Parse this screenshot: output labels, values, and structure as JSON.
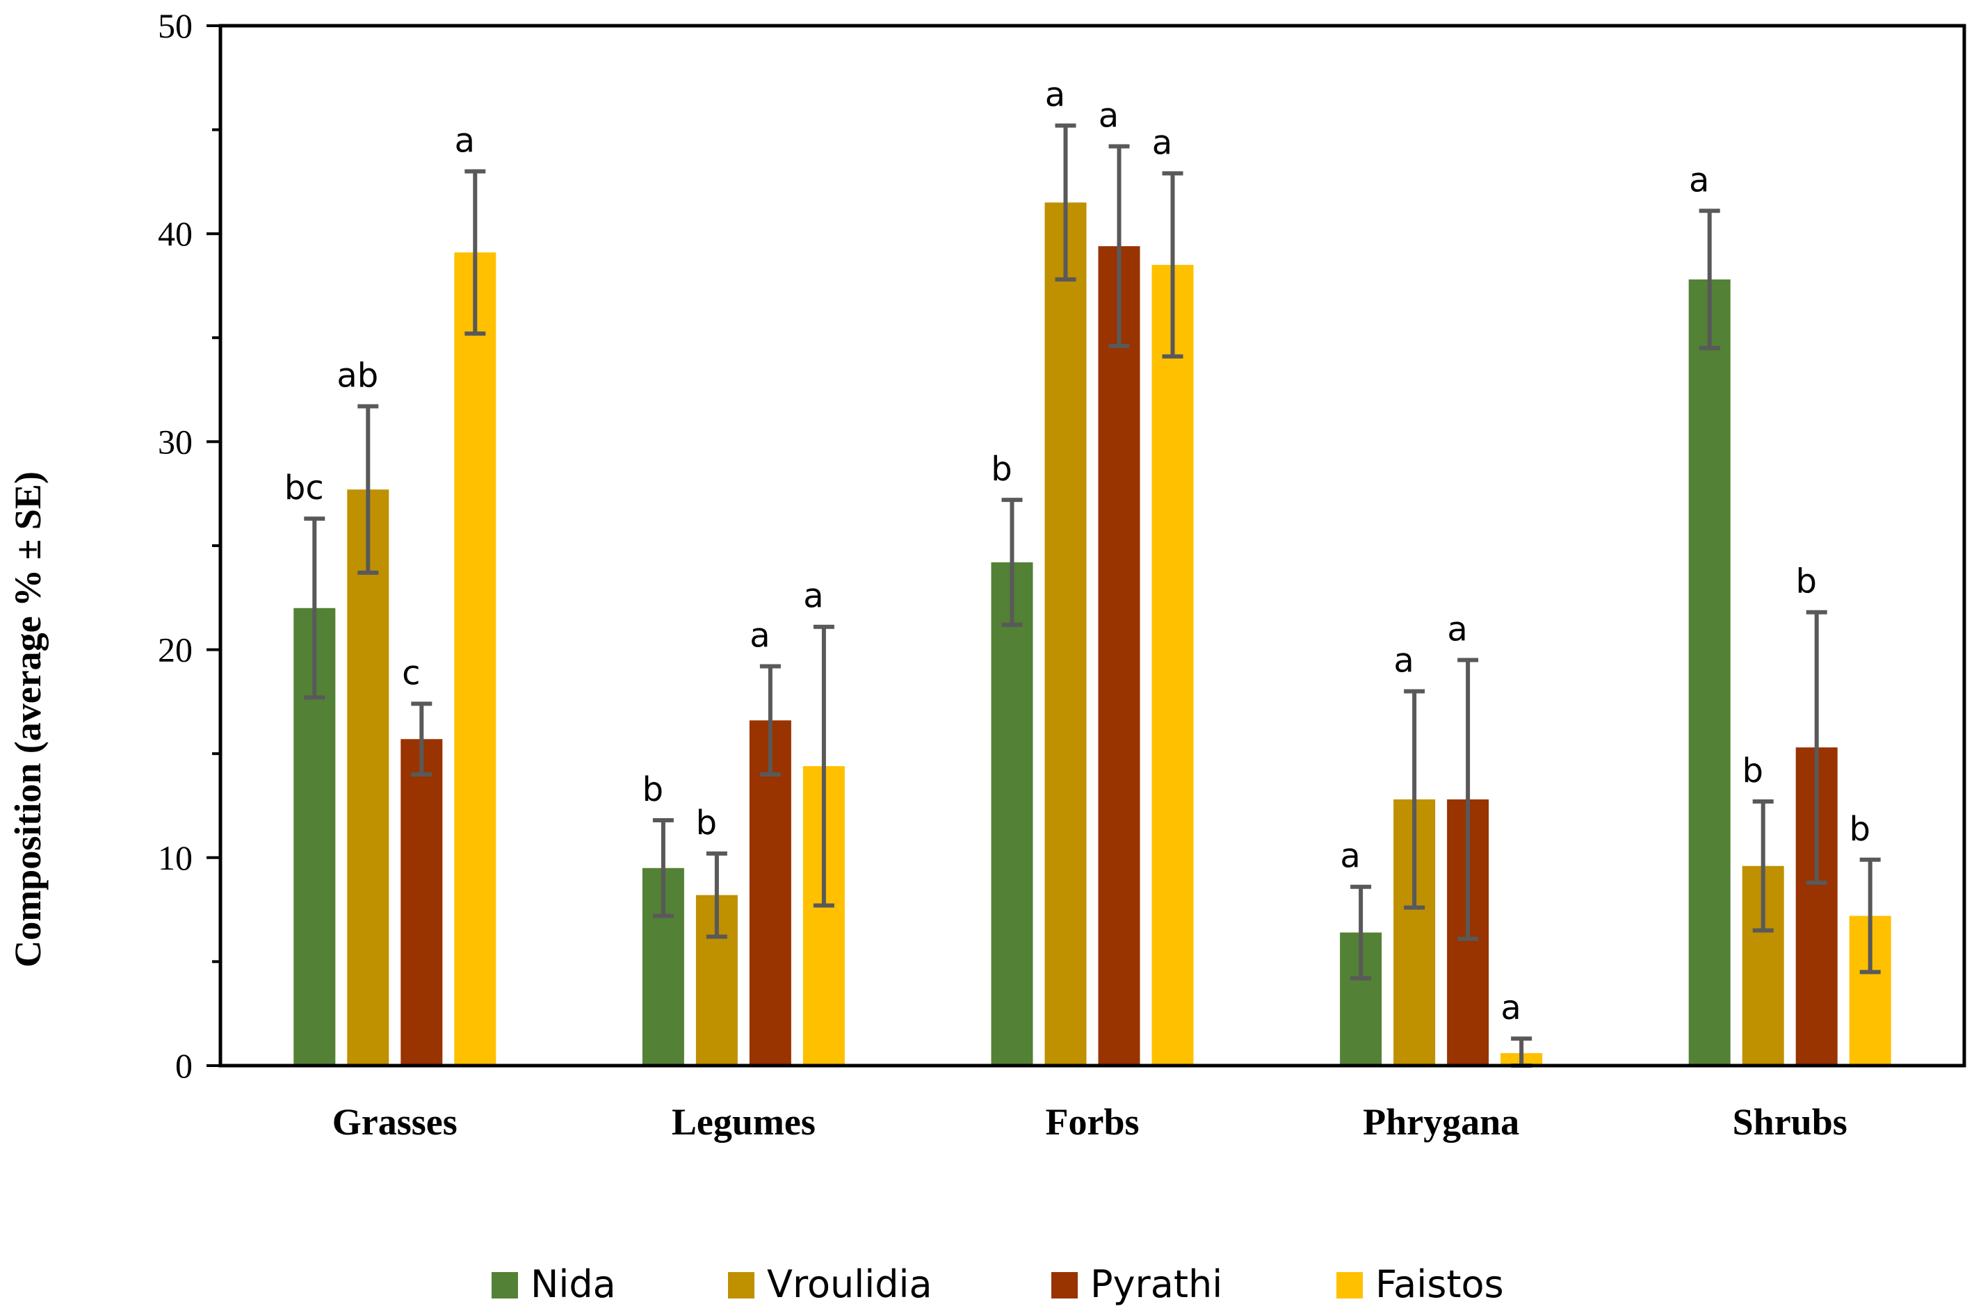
{
  "chart_data": {
    "type": "bar",
    "title": "",
    "xlabel": "",
    "ylabel": "Composition (average % ± SE)",
    "ylim": [
      0,
      50
    ],
    "yticks": [
      0,
      10,
      20,
      30,
      40,
      50
    ],
    "ytick_labels": [
      "0",
      "10",
      "20",
      "30",
      "40",
      "50"
    ],
    "grid": false,
    "legend_position": "bottom-center",
    "categories": [
      "Grasses",
      "Legumes",
      "Forbs",
      "Phrygana",
      "Shrubs"
    ],
    "series": [
      {
        "name": "Nida",
        "color": "#538135",
        "values": [
          22.0,
          9.5,
          24.2,
          6.4,
          37.8
        ],
        "errors": [
          4.3,
          2.3,
          3.0,
          2.2,
          3.3
        ],
        "labels": [
          "bc",
          "b",
          "b",
          "a",
          "a"
        ]
      },
      {
        "name": "Vroulidia",
        "color": "#BF9000",
        "values": [
          27.7,
          8.2,
          41.5,
          12.8,
          9.6
        ],
        "errors": [
          4.0,
          2.0,
          3.7,
          5.2,
          3.1
        ],
        "labels": [
          "ab",
          "b",
          "a",
          "a",
          "b"
        ]
      },
      {
        "name": "Pyrathi",
        "color": "#993300",
        "values": [
          15.7,
          16.6,
          39.4,
          12.8,
          15.3
        ],
        "errors": [
          1.7,
          2.6,
          4.8,
          6.7,
          6.5
        ],
        "labels": [
          "c",
          "a",
          "a",
          "a",
          "b"
        ]
      },
      {
        "name": "Faistos",
        "color": "#FFC000",
        "values": [
          39.1,
          14.4,
          38.5,
          0.6,
          7.2
        ],
        "errors": [
          3.9,
          6.7,
          4.4,
          0.7,
          2.7
        ],
        "labels": [
          "a",
          "a",
          "a",
          "a",
          "b"
        ]
      }
    ]
  }
}
